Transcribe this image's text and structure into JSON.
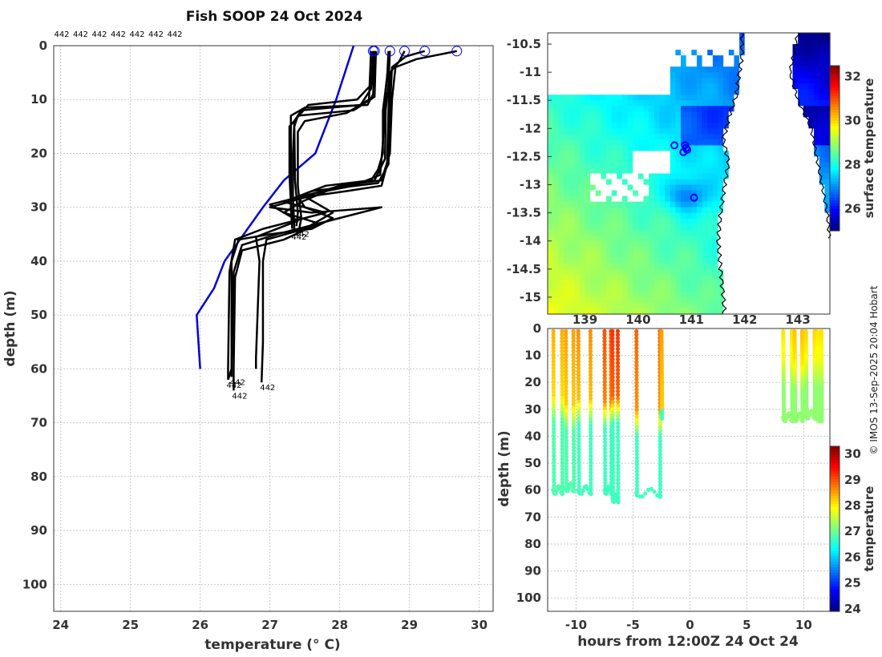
{
  "copyright": "© IMOS 13-Sep-2025 20:04 Hobart",
  "colors": {
    "profile": "#000000",
    "climatology": "#0000dd",
    "grid": "#c8c8c8",
    "marker": "#0000ff",
    "land": "#ffffff",
    "cloud": "#ffffff"
  },
  "chart_data": [
    {
      "type": "line",
      "id": "profiles",
      "title": "Fish SOOP 24 Oct 2024",
      "xlabel": "temperature (° C)",
      "ylabel": "depth (m)",
      "xlim": [
        23.9,
        30.2
      ],
      "ylim": [
        105,
        0
      ],
      "xticks": [
        24,
        25,
        26,
        27,
        28,
        29,
        30
      ],
      "yticks": [
        0,
        10,
        20,
        30,
        40,
        50,
        60,
        70,
        80,
        90,
        100
      ],
      "header_labels": [
        "442",
        "442",
        "442",
        "442",
        "442",
        "442",
        "442"
      ],
      "end_labels": [
        {
          "text": "442",
          "t": 26.4,
          "d": 62
        },
        {
          "text": "442",
          "t": 26.45,
          "d": 61.5
        },
        {
          "text": "442",
          "t": 26.48,
          "d": 64
        },
        {
          "text": "442",
          "t": 26.88,
          "d": 62.5
        },
        {
          "text": "442",
          "t": 27.33,
          "d": 34.5
        },
        {
          "text": "442",
          "t": 27.37,
          "d": 34
        }
      ],
      "climatology": {
        "name": "climatology",
        "points": [
          [
            28.2,
            0
          ],
          [
            27.95,
            10
          ],
          [
            27.65,
            20
          ],
          [
            27.2,
            25
          ],
          [
            26.9,
            30
          ],
          [
            26.35,
            40
          ],
          [
            26.2,
            45
          ],
          [
            25.95,
            50
          ],
          [
            26.0,
            60
          ]
        ]
      },
      "surface_markers": [
        28.48,
        28.5,
        28.72,
        28.93,
        29.22,
        29.68
      ],
      "series": [
        {
          "name": "a1",
          "points": [
            [
              28.48,
              1
            ],
            [
              28.45,
              8
            ],
            [
              28.3,
              11
            ],
            [
              27.45,
              12
            ],
            [
              27.35,
              14
            ],
            [
              27.33,
              20
            ],
            [
              27.33,
              28
            ],
            [
              27.35,
              34
            ],
            [
              27.33,
              34.5
            ]
          ]
        },
        {
          "name": "a2",
          "points": [
            [
              28.5,
              1
            ],
            [
              28.48,
              9
            ],
            [
              28.4,
              11
            ],
            [
              27.5,
              11.5
            ],
            [
              27.3,
              13
            ],
            [
              27.3,
              22
            ],
            [
              27.3,
              30
            ],
            [
              27.32,
              34
            ]
          ]
        },
        {
          "name": "a3",
          "points": [
            [
              28.52,
              1
            ],
            [
              28.5,
              9.5
            ],
            [
              28.2,
              12
            ],
            [
              27.4,
              13
            ],
            [
              27.35,
              15
            ],
            [
              27.36,
              25
            ],
            [
              27.4,
              31
            ],
            [
              27.38,
              33.5
            ]
          ]
        },
        {
          "name": "a4",
          "points": [
            [
              28.45,
              1
            ],
            [
              28.42,
              10
            ],
            [
              28.1,
              12.5
            ],
            [
              27.5,
              14
            ],
            [
              27.4,
              16
            ],
            [
              27.4,
              26
            ],
            [
              27.45,
              32
            ],
            [
              27.42,
              34
            ]
          ]
        },
        {
          "name": "a5",
          "points": [
            [
              28.5,
              1
            ],
            [
              28.47,
              7
            ],
            [
              28.25,
              10
            ],
            [
              27.55,
              11
            ],
            [
              27.28,
              15
            ],
            [
              27.28,
              24
            ],
            [
              27.3,
              29
            ],
            [
              27.33,
              33
            ]
          ]
        },
        {
          "name": "b1",
          "points": [
            [
              28.7,
              1
            ],
            [
              28.68,
              6
            ],
            [
              28.62,
              12
            ],
            [
              28.62,
              20
            ],
            [
              28.55,
              23
            ],
            [
              28.45,
              25
            ],
            [
              27.8,
              26
            ],
            [
              27.4,
              28
            ],
            [
              27.5,
              30
            ],
            [
              27.9,
              32
            ],
            [
              27.6,
              34
            ],
            [
              27.0,
              35
            ],
            [
              26.55,
              36
            ],
            [
              26.45,
              40
            ],
            [
              26.45,
              60
            ],
            [
              26.4,
              62
            ]
          ]
        },
        {
          "name": "b2",
          "points": [
            [
              28.72,
              1
            ],
            [
              28.7,
              7
            ],
            [
              28.66,
              12
            ],
            [
              28.65,
              21
            ],
            [
              28.5,
              25
            ],
            [
              27.9,
              26.5
            ],
            [
              27.45,
              29
            ],
            [
              27.2,
              31
            ],
            [
              27.7,
              33
            ],
            [
              27.1,
              35
            ],
            [
              26.6,
              37
            ],
            [
              26.48,
              42
            ],
            [
              26.45,
              60
            ],
            [
              26.45,
              61.5
            ]
          ]
        },
        {
          "name": "b3",
          "points": [
            [
              28.93,
              1
            ],
            [
              28.85,
              3
            ],
            [
              28.72,
              5
            ],
            [
              28.7,
              12
            ],
            [
              28.68,
              22
            ],
            [
              28.6,
              26
            ],
            [
              28.1,
              27
            ],
            [
              27.55,
              28
            ],
            [
              27.0,
              30
            ],
            [
              27.6,
              31
            ],
            [
              28.6,
              30
            ],
            [
              27.7,
              33
            ],
            [
              27.2,
              36
            ],
            [
              26.6,
              38
            ],
            [
              26.5,
              43
            ],
            [
              26.48,
              60
            ],
            [
              26.48,
              64
            ]
          ]
        },
        {
          "name": "b4",
          "points": [
            [
              29.22,
              1
            ],
            [
              28.95,
              2
            ],
            [
              28.75,
              4
            ],
            [
              28.72,
              12
            ],
            [
              28.7,
              22
            ],
            [
              28.55,
              25.5
            ],
            [
              27.6,
              27
            ],
            [
              27.2,
              29
            ],
            [
              27.8,
              31
            ],
            [
              26.9,
              34
            ],
            [
              26.5,
              36
            ],
            [
              26.42,
              42
            ],
            [
              26.4,
              60
            ],
            [
              26.4,
              62
            ]
          ]
        },
        {
          "name": "b5",
          "points": [
            [
              29.68,
              1
            ],
            [
              29.1,
              2.5
            ],
            [
              28.8,
              4
            ],
            [
              28.75,
              10
            ],
            [
              28.72,
              20
            ],
            [
              28.6,
              25
            ],
            [
              28.0,
              26
            ],
            [
              27.5,
              28
            ],
            [
              27.9,
              31
            ],
            [
              27.5,
              34
            ],
            [
              26.95,
              36
            ],
            [
              26.9,
              40
            ],
            [
              26.9,
              55
            ],
            [
              26.88,
              62.5
            ]
          ]
        },
        {
          "name": "b6",
          "points": [
            [
              28.72,
              1
            ],
            [
              28.66,
              8
            ],
            [
              28.62,
              18
            ],
            [
              28.58,
              24
            ],
            [
              28.2,
              26
            ],
            [
              27.6,
              27.5
            ],
            [
              27.0,
              29.5
            ],
            [
              27.4,
              32.5
            ],
            [
              26.8,
              35.5
            ],
            [
              26.85,
              40
            ],
            [
              26.8,
              58
            ],
            [
              26.8,
              60
            ]
          ]
        }
      ]
    },
    {
      "type": "heatmap",
      "id": "sst_map",
      "colorbar_label": "surface temperature",
      "xlim": [
        138.3,
        143.6
      ],
      "ylim": [
        -15.3,
        -10.3
      ],
      "yticks": [
        "-10.5",
        "-11",
        "-11.5",
        "-12",
        "-12.5",
        "-13",
        "-13.5",
        "-14",
        "-14.5",
        "-15"
      ],
      "yticks_values": [
        -10.5,
        -11,
        -11.5,
        -12,
        -12.5,
        -13,
        -13.5,
        -14,
        -14.5,
        -15
      ],
      "xticks": [
        "139",
        "140",
        "141",
        "142",
        "143"
      ],
      "xticks_values": [
        139,
        140,
        141,
        142,
        143
      ],
      "colorbar_ticks": [
        "26",
        "28",
        "30",
        "32"
      ],
      "colorbar_ticks_values": [
        26,
        28,
        30,
        32
      ],
      "colorbar_range": [
        25.0,
        32.5
      ],
      "stations": [
        [
          140.68,
          -12.3
        ],
        [
          140.88,
          -12.3
        ],
        [
          140.9,
          -12.35
        ],
        [
          140.85,
          -12.42
        ],
        [
          140.92,
          -12.38
        ],
        [
          141.05,
          -13.23
        ]
      ]
    },
    {
      "type": "scatter",
      "id": "depth_time",
      "xlabel": "hours from 12:00Z 24 Oct 24",
      "ylabel": "depth (m)",
      "colorbar_label": "temperature",
      "xlim": [
        -12.5,
        12.3
      ],
      "ylim": [
        105,
        0
      ],
      "xticks": [
        "-10",
        "-5",
        "0",
        "5",
        "10"
      ],
      "xticks_values": [
        -10,
        -5,
        0,
        5,
        10
      ],
      "yticks": [
        0,
        10,
        20,
        30,
        40,
        50,
        60,
        70,
        80,
        90,
        100
      ],
      "colorbar_ticks": [
        "24",
        "25",
        "26",
        "27",
        "28",
        "29",
        "30"
      ],
      "colorbar_ticks_values": [
        24,
        25,
        26,
        27,
        28,
        29,
        30
      ],
      "colorbar_range": [
        23.9,
        30.3
      ],
      "casts": [
        {
          "t": -12.0,
          "t2": -11.2,
          "mld": 25,
          "top": 28.4,
          "deep": 26.8,
          "bottom": 61
        },
        {
          "t": -10.9,
          "t2": -10.2,
          "mld": 28,
          "top": 28.5,
          "deep": 26.8,
          "bottom": 60
        },
        {
          "t": -9.8,
          "t2": -8.7,
          "mld": 26,
          "top": 28.6,
          "deep": 26.7,
          "bottom": 61
        },
        {
          "t": -7.5,
          "t2": -6.9,
          "mld": 27,
          "top": 29.0,
          "deep": 26.7,
          "bottom": 61
        },
        {
          "t": -6.8,
          "t2": -6.3,
          "mld": 25,
          "top": 29.2,
          "deep": 26.7,
          "bottom": 64
        },
        {
          "t": -4.7,
          "t2": -2.6,
          "mld": 30,
          "top": 28.9,
          "deep": 26.7,
          "bottom": 62
        },
        {
          "t": -2.5,
          "t2": -2.45,
          "mld": 30,
          "top": 28.5,
          "deep": 26.7,
          "bottom": 33
        },
        {
          "t": 8.2,
          "t2": 9.0,
          "mld": 12,
          "top": 28.1,
          "deep": 27.2,
          "bottom": 34
        },
        {
          "t": 9.2,
          "t2": 9.9,
          "mld": 13,
          "top": 28.3,
          "deep": 27.2,
          "bottom": 34
        },
        {
          "t": 10.2,
          "t2": 11.0,
          "mld": 11,
          "top": 28.2,
          "deep": 27.2,
          "bottom": 33
        },
        {
          "t": 11.2,
          "t2": 11.6,
          "mld": 12,
          "top": 28.1,
          "deep": 27.2,
          "bottom": 34
        }
      ]
    }
  ]
}
